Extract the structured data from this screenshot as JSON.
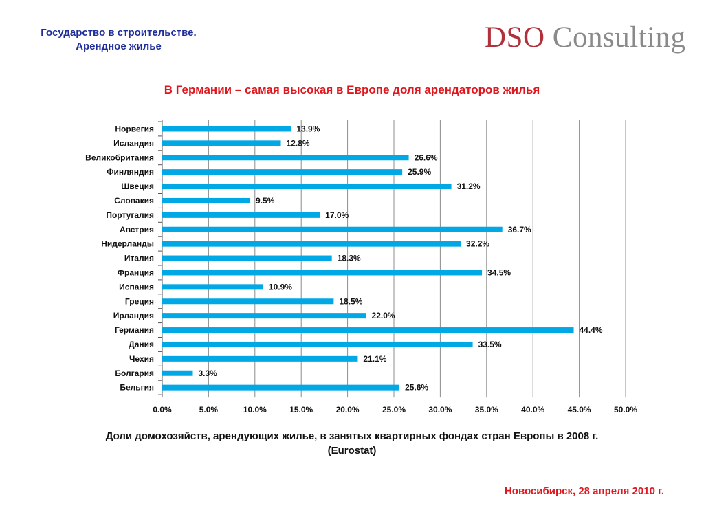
{
  "header": {
    "line1": "Государство в строительстве.",
    "line2": "Арендное жилье"
  },
  "logo": {
    "dso": "DSO",
    "consulting": "Consulting"
  },
  "title": "В Германии – самая высокая в Европе доля арендаторов жилья",
  "caption": {
    "line1": "Доли домохозяйств, арендующих жилье, в занятых квартирных фондах стран Европы в 2008 г.",
    "line2": "(Eurostat)"
  },
  "footer": "Новосибирск, 28 апреля 2010 г.",
  "colors": {
    "bar": "#00a8e6",
    "title": "#e0161e",
    "header": "#1f2d9a",
    "grid": "#8c8c8c"
  },
  "chart_data": {
    "type": "bar",
    "orientation": "horizontal",
    "categories": [
      "Норвегия",
      "Исландия",
      "Великобритания",
      "Финляндия",
      "Швеция",
      "Словакия",
      "Португалия",
      "Австрия",
      "Нидерланды",
      "Италия",
      "Франция",
      "Испания",
      "Греция",
      "Ирландия",
      "Германия",
      "Дания",
      "Чехия",
      "Болгария",
      "Бельгия"
    ],
    "values": [
      13.9,
      12.8,
      26.6,
      25.9,
      31.2,
      9.5,
      17.0,
      36.7,
      32.2,
      18.3,
      34.5,
      10.9,
      18.5,
      22.0,
      44.4,
      33.5,
      21.1,
      3.3,
      25.6
    ],
    "data_labels": [
      "13.9%",
      "12.8%",
      "26.6%",
      "25.9%",
      "31.2%",
      "9.5%",
      "17.0%",
      "36.7%",
      "32.2%",
      "18.3%",
      "34.5%",
      "10.9%",
      "18.5%",
      "22.0%",
      "44.4%",
      "33.5%",
      "21.1%",
      "3.3%",
      "25.6%"
    ],
    "xlim": [
      0,
      50
    ],
    "xticks": [
      0,
      5,
      10,
      15,
      20,
      25,
      30,
      35,
      40,
      45,
      50
    ],
    "xtick_labels": [
      "0.0%",
      "5.0%",
      "10.0%",
      "15.0%",
      "20.0%",
      "25.0%",
      "30.0%",
      "35.0%",
      "40.0%",
      "45.0%",
      "50.0%"
    ],
    "grid": true,
    "legend": "none"
  }
}
